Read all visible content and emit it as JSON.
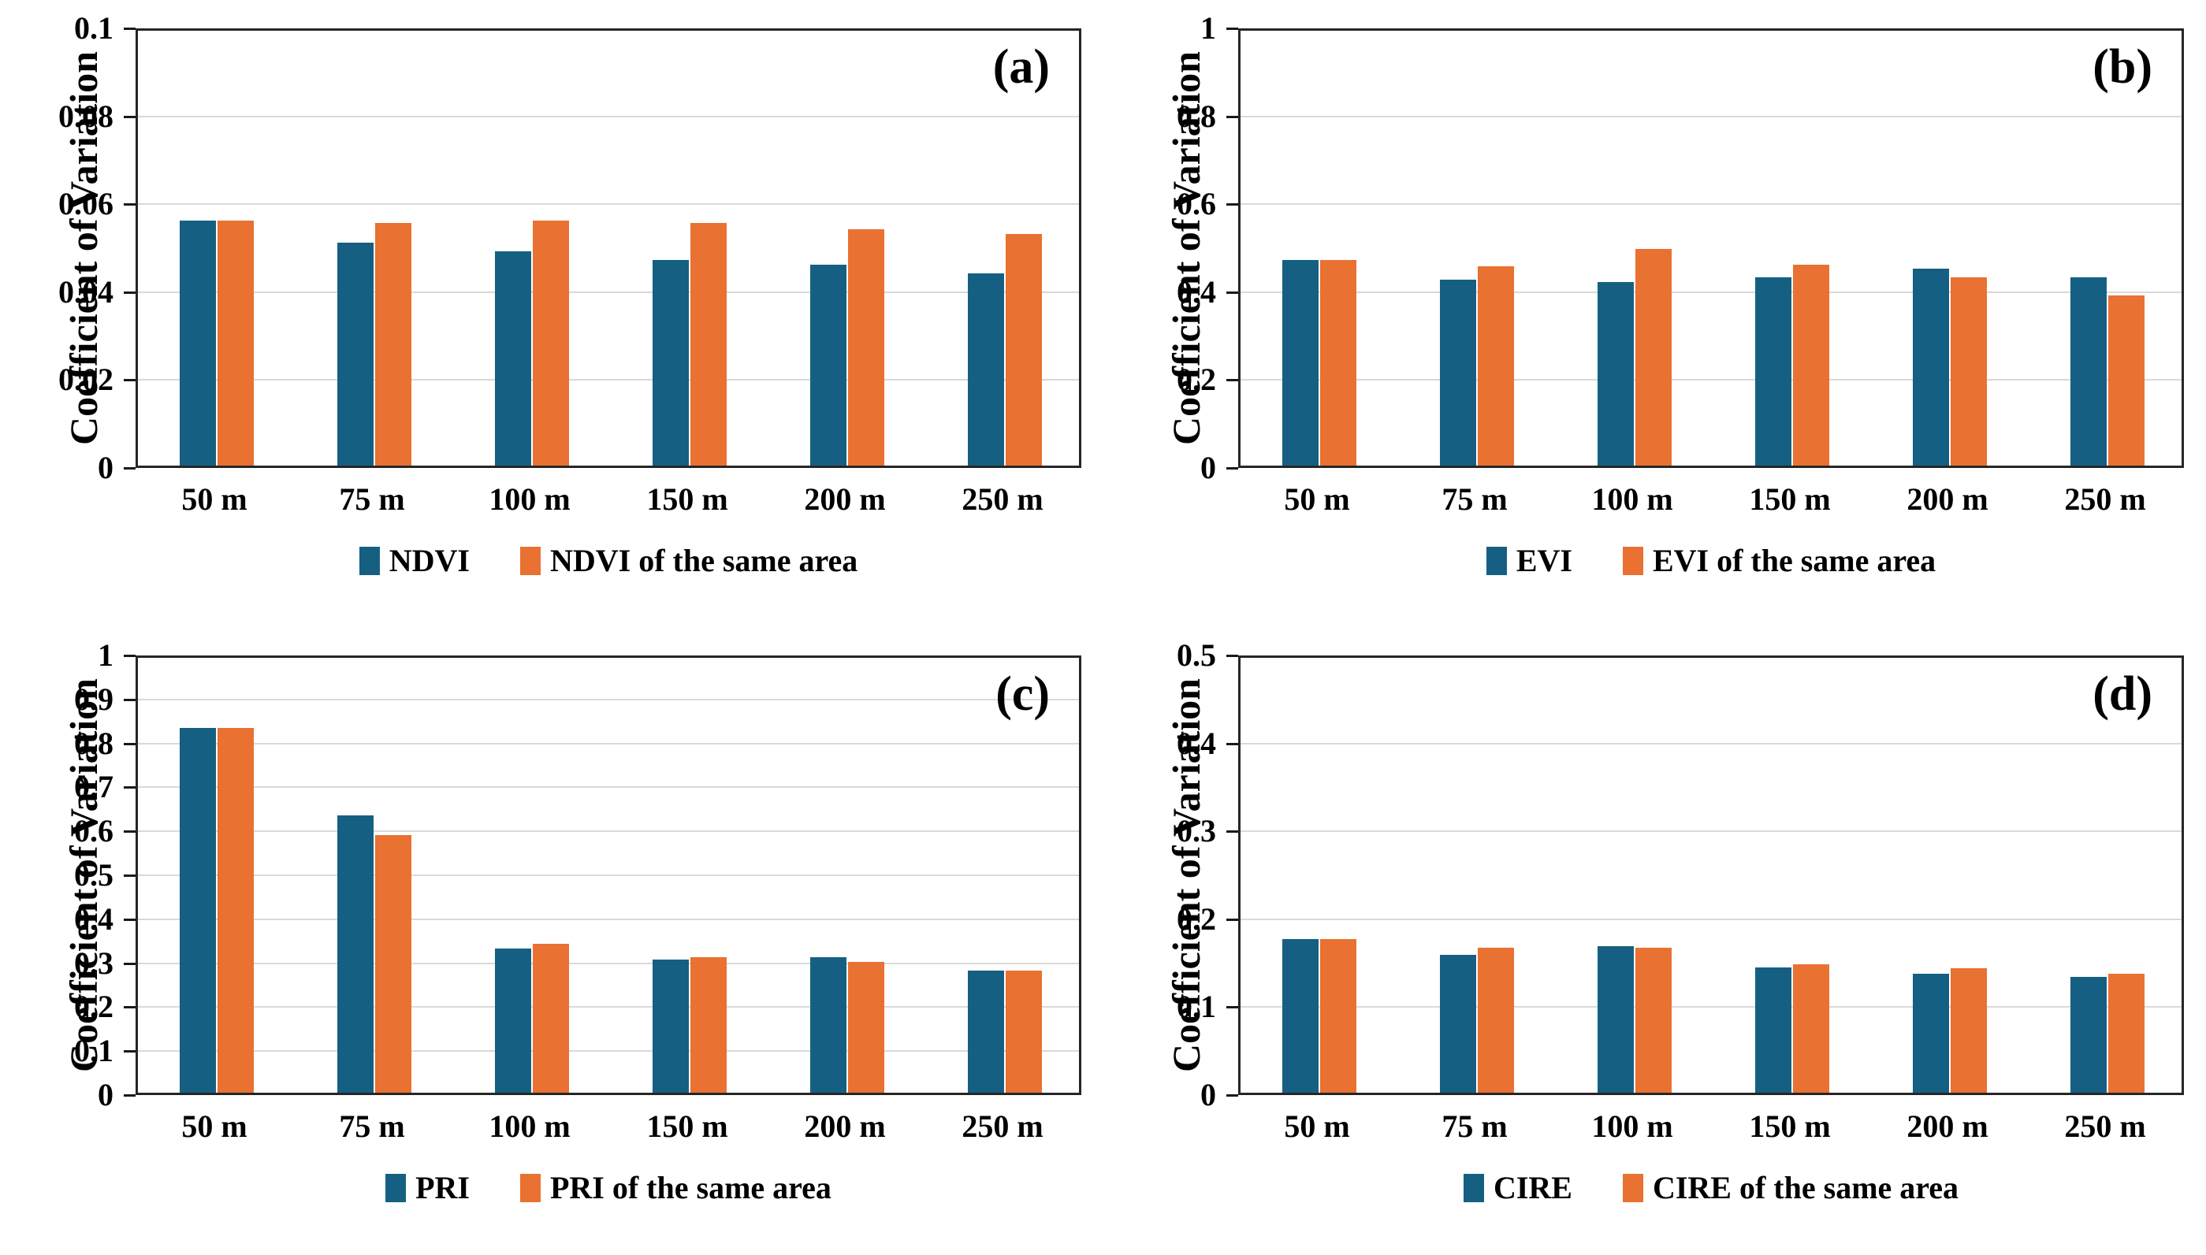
{
  "colors": {
    "series1": "#156082",
    "series2": "#E97132",
    "gridline": "#D9D9D9",
    "axis": "#262626",
    "text": "#000000"
  },
  "ylabel": "Coefficient of Variation",
  "chart_data": [
    {
      "type": "bar",
      "panel_letter": "(a)",
      "categories": [
        "50 m",
        "75 m",
        "100 m",
        "150 m",
        "200 m",
        "250 m"
      ],
      "series": [
        {
          "name": "NDVI",
          "values": [
            0.056,
            0.051,
            0.049,
            0.047,
            0.046,
            0.044
          ]
        },
        {
          "name": "NDVI of the same area",
          "values": [
            0.056,
            0.0555,
            0.056,
            0.0555,
            0.054,
            0.053
          ]
        }
      ],
      "xlabel": "",
      "ylabel": "Coefficient of Variation",
      "ylim": [
        0,
        0.1
      ],
      "ytick_labels": [
        "0",
        "0.02",
        "0.04",
        "0.06",
        "0.08",
        "0.1"
      ],
      "grid": true,
      "legend_position": "bottom"
    },
    {
      "type": "bar",
      "panel_letter": "(b)",
      "categories": [
        "50 m",
        "75 m",
        "100 m",
        "150 m",
        "200 m",
        "250 m"
      ],
      "series": [
        {
          "name": "EVI",
          "values": [
            0.47,
            0.425,
            0.42,
            0.43,
            0.45,
            0.43
          ]
        },
        {
          "name": "EVI of the same area",
          "values": [
            0.47,
            0.455,
            0.495,
            0.46,
            0.43,
            0.39
          ]
        }
      ],
      "xlabel": "",
      "ylabel": "Coefficient of Variation",
      "ylim": [
        0,
        1
      ],
      "ytick_labels": [
        "0",
        "0.2",
        "0.4",
        "0.6",
        "0.8",
        "1"
      ],
      "grid": true,
      "legend_position": "bottom"
    },
    {
      "type": "bar",
      "panel_letter": "(c)",
      "categories": [
        "50 m",
        "75 m",
        "100 m",
        "150 m",
        "200 m",
        "250 m"
      ],
      "series": [
        {
          "name": "PRI",
          "values": [
            0.835,
            0.635,
            0.33,
            0.305,
            0.31,
            0.28
          ]
        },
        {
          "name": "PRI of the same area",
          "values": [
            0.835,
            0.59,
            0.34,
            0.31,
            0.3,
            0.28
          ]
        }
      ],
      "xlabel": "",
      "ylabel": "Coefficient of Variation",
      "ylim": [
        0,
        1
      ],
      "ytick_labels": [
        "0",
        "0.1",
        "0.2",
        "0.3",
        "0.4",
        "0.5",
        "0.6",
        "0.7",
        "0.8",
        "0.9",
        "1"
      ],
      "grid": true,
      "legend_position": "bottom"
    },
    {
      "type": "bar",
      "panel_letter": "(d)",
      "categories": [
        "50 m",
        "75 m",
        "100 m",
        "150 m",
        "200 m",
        "250 m"
      ],
      "series": [
        {
          "name": "CIRE",
          "values": [
            0.176,
            0.158,
            0.168,
            0.143,
            0.136,
            0.132
          ]
        },
        {
          "name": "CIRE of the same area",
          "values": [
            0.176,
            0.166,
            0.166,
            0.147,
            0.142,
            0.136
          ]
        }
      ],
      "xlabel": "",
      "ylabel": "Coefficient of Variation",
      "ylim": [
        0,
        0.5
      ],
      "ytick_labels": [
        "0",
        "0.1",
        "0.2",
        "0.3",
        "0.4",
        "0.5"
      ],
      "grid": true,
      "legend_position": "bottom"
    }
  ]
}
